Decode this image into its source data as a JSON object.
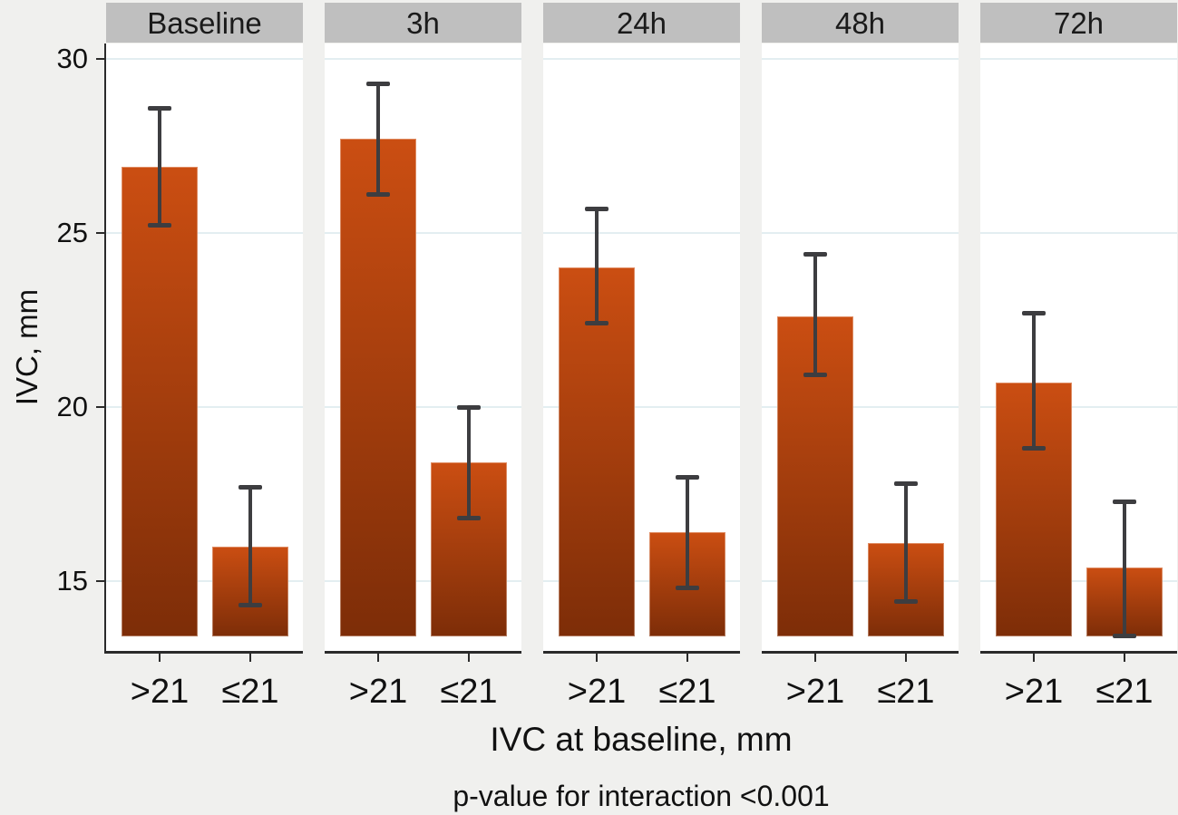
{
  "chart_data": {
    "type": "bar",
    "title": "",
    "ylabel": "IVC, mm",
    "xlabel": "IVC at baseline, mm",
    "note": "p-value for interaction <0.001",
    "ylim": [
      13,
      30.5
    ],
    "yticks": [
      30,
      25,
      20,
      15
    ],
    "categories": [
      ">21",
      "≤21"
    ],
    "legend": "none",
    "grid": "horizontal",
    "panels": [
      {
        "label": "Baseline",
        "bars": [
          {
            "category": ">21",
            "value": 26.9,
            "ci_low": 25.2,
            "ci_high": 28.6
          },
          {
            "category": "≤21",
            "value": 16.0,
            "ci_low": 14.3,
            "ci_high": 17.7
          }
        ]
      },
      {
        "label": "3h",
        "bars": [
          {
            "category": ">21",
            "value": 27.7,
            "ci_low": 26.1,
            "ci_high": 29.3
          },
          {
            "category": "≤21",
            "value": 18.4,
            "ci_low": 16.8,
            "ci_high": 20.0
          }
        ]
      },
      {
        "label": "24h",
        "bars": [
          {
            "category": ">21",
            "value": 24.0,
            "ci_low": 22.4,
            "ci_high": 25.7
          },
          {
            "category": "≤21",
            "value": 16.4,
            "ci_low": 14.8,
            "ci_high": 18.0
          }
        ]
      },
      {
        "label": "48h",
        "bars": [
          {
            "category": ">21",
            "value": 22.6,
            "ci_low": 20.9,
            "ci_high": 24.4
          },
          {
            "category": "≤21",
            "value": 16.1,
            "ci_low": 14.4,
            "ci_high": 17.8
          }
        ]
      },
      {
        "label": "72h",
        "bars": [
          {
            "category": ">21",
            "value": 20.7,
            "ci_low": 18.8,
            "ci_high": 22.7
          },
          {
            "category": "≤21",
            "value": 15.4,
            "ci_low": 13.4,
            "ci_high": 17.3
          }
        ]
      }
    ],
    "colors": {
      "background": "#f0f0ee",
      "plot_bg": "#ffffff",
      "facet_header_bg": "#bfbfbf",
      "gridline": "#e3eef1",
      "axis_line": "#2b2b2b",
      "error_bar": "#3d3d40",
      "bar_gradient_top": "#cb4e12",
      "bar_gradient_bottom": "#7d2d08",
      "text": "#111111"
    }
  }
}
